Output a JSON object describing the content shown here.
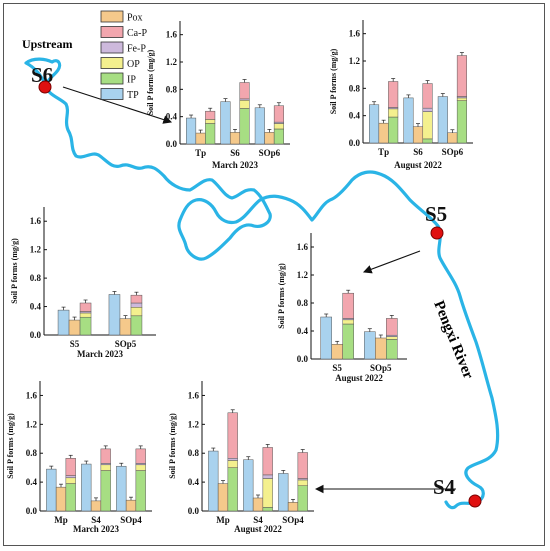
{
  "map": {
    "upstream_label": "Upstream",
    "river_label": "Pengxi River",
    "sites": [
      "S6",
      "S5",
      "S4"
    ],
    "river_color": "#2ab4e6",
    "site_color": "#e01010"
  },
  "legend": {
    "entries": [
      {
        "name": "Pox",
        "color": "#f5c98b"
      },
      {
        "name": "Ca-P",
        "color": "#f2a6ae"
      },
      {
        "name": "Fe-P",
        "color": "#cdb9dc"
      },
      {
        "name": "OP",
        "color": "#f4f08e"
      },
      {
        "name": "IP",
        "color": "#a7de83"
      },
      {
        "name": "TP",
        "color": "#a9d2ee"
      }
    ]
  },
  "chart_data": [
    {
      "id": "s6-march-2023",
      "type": "bar",
      "title": "March 2023",
      "ylabel": "Soil P forms (mg/g)",
      "ylim": [
        0,
        1.8
      ],
      "yticks": [
        "0.0",
        "0.4",
        "0.8",
        "1.2",
        "1.6"
      ],
      "categories": [
        "Tp",
        "S6",
        "SOp6"
      ],
      "groups": [
        {
          "tp": 0.38,
          "pox": 0.16,
          "ip_stack": {
            "ip": 0.3,
            "op": 0.06,
            "fe": 0.0,
            "ca": 0.12
          }
        },
        {
          "tp": 0.62,
          "pox": 0.17,
          "ip_stack": {
            "ip": 0.52,
            "op": 0.12,
            "fe": 0.02,
            "ca": 0.24
          }
        },
        {
          "tp": 0.53,
          "pox": 0.17,
          "ip_stack": {
            "ip": 0.22,
            "op": 0.08,
            "fe": 0.02,
            "ca": 0.24
          }
        }
      ]
    },
    {
      "id": "s6-august-2022",
      "type": "bar",
      "title": "August 2022",
      "ylabel": "Soil P forms (mg/g)",
      "ylim": [
        0,
        1.8
      ],
      "yticks": [
        "0.0",
        "0.4",
        "0.8",
        "1.2",
        "1.6"
      ],
      "categories": [
        "Tp",
        "S6",
        "SOp6"
      ],
      "groups": [
        {
          "tp": 0.56,
          "pox": 0.29,
          "ip_stack": {
            "ip": 0.38,
            "op": 0.12,
            "fe": 0.02,
            "ca": 0.38
          }
        },
        {
          "tp": 0.66,
          "pox": 0.24,
          "ip_stack": {
            "ip": 0.06,
            "op": 0.4,
            "fe": 0.05,
            "ca": 0.36
          }
        },
        {
          "tp": 0.68,
          "pox": 0.15,
          "ip_stack": {
            "ip": 0.62,
            "op": 0.04,
            "fe": 0.02,
            "ca": 0.6
          }
        }
      ]
    },
    {
      "id": "s5-march-2023",
      "type": "bar",
      "title": "March 2023",
      "ylabel": "Soil P forms (mg/g)",
      "ylim": [
        0,
        1.8
      ],
      "yticks": [
        "0.0",
        "0.4",
        "0.8",
        "1.2",
        "1.6"
      ],
      "categories": [
        "S5",
        "SOp5"
      ],
      "groups": [
        {
          "tp": 0.35,
          "pox": 0.21,
          "ip_stack": {
            "ip": 0.25,
            "op": 0.06,
            "fe": 0.02,
            "ca": 0.12
          }
        },
        {
          "tp": 0.57,
          "pox": 0.23,
          "ip_stack": {
            "ip": 0.27,
            "op": 0.12,
            "fe": 0.06,
            "ca": 0.11
          }
        }
      ]
    },
    {
      "id": "s5-august-2022",
      "type": "bar",
      "title": "August 2022",
      "ylabel": "Soil P forms (mg/g)",
      "ylim": [
        0,
        1.8
      ],
      "yticks": [
        "0.0",
        "0.4",
        "0.8",
        "1.2",
        "1.6"
      ],
      "categories": [
        "S5",
        "SOp5"
      ],
      "groups": [
        {
          "tp": 0.6,
          "pox": 0.21,
          "ip_stack": {
            "ip": 0.5,
            "op": 0.06,
            "fe": 0.02,
            "ca": 0.36
          }
        },
        {
          "tp": 0.39,
          "pox": 0.3,
          "ip_stack": {
            "ip": 0.28,
            "op": 0.04,
            "fe": 0.02,
            "ca": 0.24
          }
        }
      ]
    },
    {
      "id": "s4-march-2023",
      "type": "bar",
      "title": "March 2023",
      "ylabel": "Soil P forms (mg/g)",
      "ylim": [
        0,
        1.8
      ],
      "yticks": [
        "0.0",
        "0.4",
        "0.8",
        "1.2",
        "1.6"
      ],
      "categories": [
        "Mp",
        "S4",
        "SOp4"
      ],
      "groups": [
        {
          "tp": 0.58,
          "pox": 0.33,
          "ip_stack": {
            "ip": 0.38,
            "op": 0.08,
            "fe": 0.03,
            "ca": 0.24
          }
        },
        {
          "tp": 0.65,
          "pox": 0.14,
          "ip_stack": {
            "ip": 0.56,
            "op": 0.08,
            "fe": 0.02,
            "ca": 0.2
          }
        },
        {
          "tp": 0.62,
          "pox": 0.15,
          "ip_stack": {
            "ip": 0.56,
            "op": 0.08,
            "fe": 0.02,
            "ca": 0.2
          }
        }
      ]
    },
    {
      "id": "s4-august-2022",
      "type": "bar",
      "title": "August 2022",
      "ylabel": "Soil P forms (mg/g)",
      "ylim": [
        0,
        1.8
      ],
      "yticks": [
        "0.0",
        "0.4",
        "0.8",
        "1.2",
        "1.6"
      ],
      "categories": [
        "Mp",
        "S4",
        "SOp4"
      ],
      "groups": [
        {
          "tp": 0.83,
          "pox": 0.38,
          "ip_stack": {
            "ip": 0.6,
            "op": 0.1,
            "fe": 0.03,
            "ca": 0.63
          }
        },
        {
          "tp": 0.71,
          "pox": 0.18,
          "ip_stack": {
            "ip": 0.05,
            "op": 0.4,
            "fe": 0.05,
            "ca": 0.38
          }
        },
        {
          "tp": 0.52,
          "pox": 0.12,
          "ip_stack": {
            "ip": 0.35,
            "op": 0.08,
            "fe": 0.02,
            "ca": 0.36
          }
        }
      ]
    }
  ]
}
